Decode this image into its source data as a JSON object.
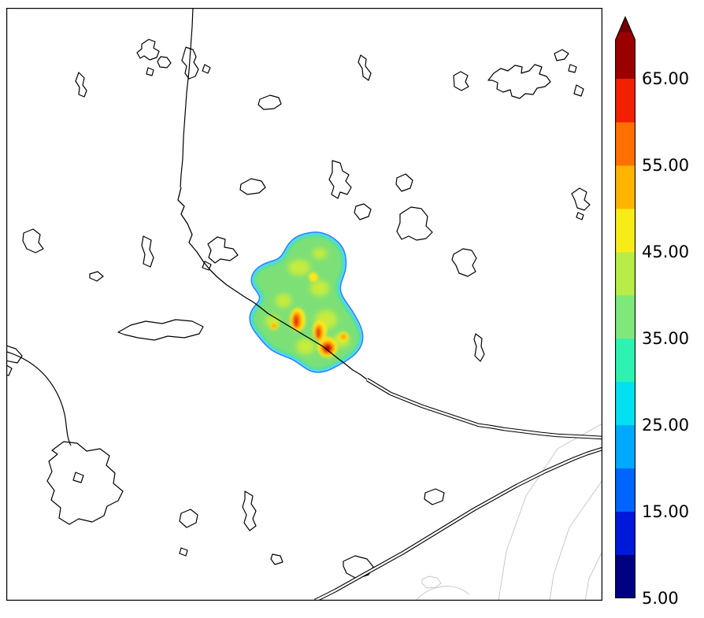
{
  "colorbar": {
    "tick_labels": [
      "65.00",
      "55.00",
      "45.00",
      "35.00",
      "25.00",
      "15.00",
      "5.00"
    ],
    "ticks": [
      65,
      55,
      45,
      35,
      25,
      15,
      5
    ],
    "min": 5,
    "max": 65,
    "tick_step": 10,
    "extend": "max",
    "band_colors_bottom_to_top": [
      "#000082",
      "#0018d8",
      "#0064ff",
      "#00a8ff",
      "#00e0f0",
      "#2ef2b2",
      "#7ee87a",
      "#b8ec48",
      "#f8ec18",
      "#ffb400",
      "#ff7000",
      "#f02000"
    ],
    "over_color": "#9a0000",
    "arrow_color": "#700000",
    "outline_color": "#000000"
  },
  "map": {
    "background_color": "#ffffff",
    "coastline_color": "#000000",
    "admin_line_color": "#c9c9c9",
    "overlay_base_color": "#7de076",
    "overlay_rim_colors": [
      "#2a7fff",
      "#53d6ff"
    ],
    "overlay_hotspot_colors": [
      "#ffe81c",
      "#ff9a00",
      "#ee2c00",
      "#990000"
    ]
  },
  "chart_data": {
    "type": "heatmap",
    "title": "",
    "xlabel": "",
    "ylabel": "",
    "colorbar_ticks": [
      5,
      15,
      25,
      35,
      45,
      55,
      65
    ],
    "colorbar_tick_labels": [
      "5.00",
      "15.00",
      "25.00",
      "35.00",
      "45.00",
      "55.00",
      "65.00"
    ],
    "value_range": [
      5,
      65
    ],
    "extend": "max",
    "legend_position": "right",
    "grid": false,
    "overlay_region": {
      "base_value_range": [
        35,
        45
      ],
      "edge_value_range": [
        25,
        30
      ],
      "hotspots": [
        {
          "x_frac": 0.487,
          "y_frac": 0.528,
          "peak_value": 60
        },
        {
          "x_frac": 0.524,
          "y_frac": 0.55,
          "peak_value": 57
        },
        {
          "x_frac": 0.539,
          "y_frac": 0.574,
          "peak_value": 67
        }
      ]
    }
  }
}
